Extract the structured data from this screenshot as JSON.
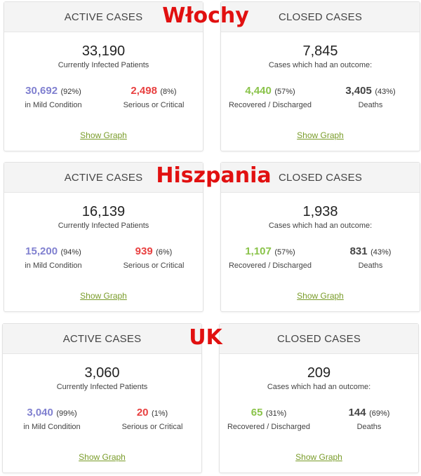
{
  "sections": [
    {
      "country": "Włochy",
      "active": {
        "header": "ACTIVE CASES",
        "total": "33,190",
        "subtitle": "Currently Infected Patients",
        "mild": {
          "value": "30,692",
          "pct": "(92%)",
          "label": "in Mild Condition"
        },
        "serious": {
          "value": "2,498",
          "pct": "(8%)",
          "label": "Serious or Critical"
        },
        "link": "Show Graph"
      },
      "closed": {
        "header": "CLOSED CASES",
        "total": "7,845",
        "subtitle": "Cases which had an outcome:",
        "recovered": {
          "value": "4,440",
          "pct": "(57%)",
          "label": "Recovered / Discharged"
        },
        "deaths": {
          "value": "3,405",
          "pct": "(43%)",
          "label": "Deaths"
        },
        "link": "Show Graph"
      }
    },
    {
      "country": "Hiszpania",
      "active": {
        "header": "ACTIVE CASES",
        "total": "16,139",
        "subtitle": "Currently Infected Patients",
        "mild": {
          "value": "15,200",
          "pct": "(94%)",
          "label": "in Mild Condition"
        },
        "serious": {
          "value": "939",
          "pct": "(6%)",
          "label": "Serious or Critical"
        },
        "link": "Show Graph"
      },
      "closed": {
        "header": "CLOSED CASES",
        "total": "1,938",
        "subtitle": "Cases which had an outcome:",
        "recovered": {
          "value": "1,107",
          "pct": "(57%)",
          "label": "Recovered / Discharged"
        },
        "deaths": {
          "value": "831",
          "pct": "(43%)",
          "label": "Deaths"
        },
        "link": "Show Graph"
      }
    },
    {
      "country": "UK",
      "active": {
        "header": "ACTIVE CASES",
        "total": "3,060",
        "subtitle": "Currently Infected Patients",
        "mild": {
          "value": "3,040",
          "pct": "(99%)",
          "label": "in Mild Condition"
        },
        "serious": {
          "value": "20",
          "pct": "(1%)",
          "label": "Serious or Critical"
        },
        "link": "Show Graph"
      },
      "closed": {
        "header": "CLOSED CASES",
        "total": "209",
        "subtitle": "Cases which had an outcome:",
        "recovered": {
          "value": "65",
          "pct": "(31%)",
          "label": "Recovered / Discharged"
        },
        "deaths": {
          "value": "144",
          "pct": "(69%)",
          "label": "Deaths"
        },
        "link": "Show Graph"
      }
    }
  ],
  "colors": {
    "mild": "#8080d0",
    "serious": "#e84040",
    "recovered": "#8ac34a",
    "deaths": "#444444",
    "link": "#7a9c2a",
    "country_label": "#e11010"
  }
}
